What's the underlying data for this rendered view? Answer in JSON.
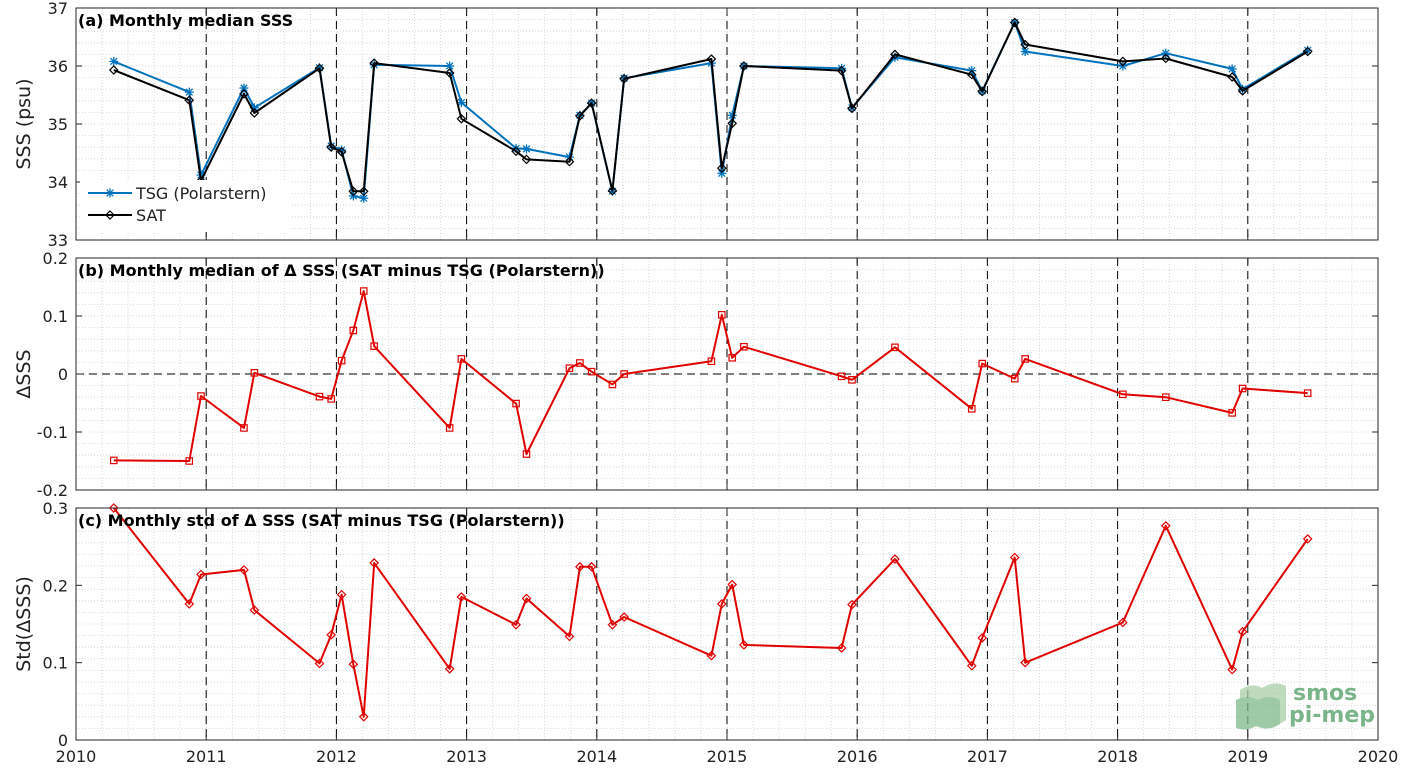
{
  "colors": {
    "tsg": "#0072bd",
    "sat": "#000000",
    "delta": "#e00000",
    "logo": "#4f9e63"
  },
  "logo": {
    "line1": "smos",
    "line2": "pi-mep"
  },
  "chart_data": [
    {
      "type": "line",
      "title": "(a) Monthly median SSS",
      "ylabel": "SSS (psu)",
      "xlim": [
        2010,
        2020
      ],
      "ylim": [
        33,
        37
      ],
      "yticks": [
        "33",
        "34",
        "35",
        "36",
        "37"
      ],
      "grid": true,
      "legend": {
        "position": "bottom-left",
        "entries": [
          "TSG (Polarstern)",
          "SAT"
        ]
      },
      "vertical_dashed_lines": [
        2011,
        2012,
        2013,
        2014,
        2015,
        2016,
        2017,
        2018,
        2019
      ],
      "series": [
        {
          "name": "TSG (Polarstern)",
          "marker": "asterisk",
          "x": [
            2010.29,
            2010.87,
            2010.96,
            2011.29,
            2011.37,
            2011.87,
            2011.96,
            2012.04,
            2012.13,
            2012.21,
            2012.29,
            2012.87,
            2012.96,
            2013.38,
            2013.46,
            2013.79,
            2013.87,
            2013.96,
            2014.12,
            2014.21,
            2014.88,
            2014.96,
            2015.04,
            2015.13,
            2015.88,
            2015.96,
            2016.29,
            2016.88,
            2016.96,
            2017.21,
            2017.29,
            2018.04,
            2018.37,
            2018.88,
            2018.96,
            2019.46
          ],
          "values": [
            36.08,
            35.55,
            34.12,
            35.62,
            35.28,
            35.97,
            34.62,
            34.55,
            33.76,
            33.72,
            36.02,
            36.0,
            35.37,
            34.58,
            34.57,
            34.43,
            35.15,
            35.36,
            33.84,
            35.79,
            36.05,
            34.15,
            35.15,
            36.0,
            35.96,
            35.28,
            36.15,
            35.92,
            35.57,
            36.75,
            36.25,
            36.0,
            36.22,
            35.95,
            35.6,
            36.27
          ]
        },
        {
          "name": "SAT",
          "marker": "diamond",
          "x": [
            2010.29,
            2010.87,
            2010.96,
            2011.29,
            2011.37,
            2011.87,
            2011.96,
            2012.04,
            2012.13,
            2012.21,
            2012.29,
            2012.87,
            2012.96,
            2013.38,
            2013.46,
            2013.79,
            2013.87,
            2013.96,
            2014.12,
            2014.21,
            2014.88,
            2014.96,
            2015.04,
            2015.13,
            2015.88,
            2015.96,
            2016.29,
            2016.88,
            2016.96,
            2017.21,
            2017.29,
            2018.04,
            2018.37,
            2018.88,
            2018.96,
            2019.46
          ],
          "values": [
            35.93,
            35.41,
            34.02,
            35.52,
            35.19,
            35.96,
            34.6,
            34.52,
            33.84,
            33.84,
            36.05,
            35.88,
            35.09,
            34.53,
            34.39,
            34.35,
            35.14,
            35.36,
            33.85,
            35.78,
            36.12,
            34.24,
            35.01,
            36.0,
            35.92,
            35.27,
            36.2,
            35.85,
            35.56,
            36.75,
            36.37,
            36.08,
            36.13,
            35.81,
            35.57,
            36.25
          ]
        }
      ]
    },
    {
      "type": "line",
      "title": "(b) Monthly median of Δ SSS (SAT minus TSG (Polarstern))",
      "ylabel": "ΔSSS",
      "xlim": [
        2010,
        2020
      ],
      "ylim": [
        -0.2,
        0.2
      ],
      "yticks": [
        "-0.2",
        "-0.1",
        "0",
        "0.1",
        "0.2"
      ],
      "grid": true,
      "zero_line": true,
      "vertical_dashed_lines": [
        2011,
        2012,
        2013,
        2014,
        2015,
        2016,
        2017,
        2018,
        2019
      ],
      "series": [
        {
          "marker": "square",
          "x": [
            2010.29,
            2010.87,
            2010.96,
            2011.29,
            2011.37,
            2011.87,
            2011.96,
            2012.04,
            2012.13,
            2012.21,
            2012.29,
            2012.87,
            2012.96,
            2013.38,
            2013.46,
            2013.79,
            2013.87,
            2013.96,
            2014.12,
            2014.21,
            2014.88,
            2014.96,
            2015.04,
            2015.13,
            2015.88,
            2015.96,
            2016.29,
            2016.88,
            2016.96,
            2017.21,
            2017.29,
            2018.04,
            2018.37,
            2018.88,
            2018.96,
            2019.46
          ],
          "values": [
            -0.149,
            -0.15,
            -0.038,
            -0.093,
            0.002,
            -0.039,
            -0.043,
            0.023,
            0.075,
            0.143,
            0.048,
            -0.093,
            0.026,
            -0.051,
            -0.138,
            0.01,
            0.019,
            0.004,
            -0.018,
            0.0,
            0.022,
            0.102,
            0.028,
            0.047,
            -0.004,
            -0.01,
            0.046,
            -0.06,
            0.018,
            -0.008,
            0.026,
            -0.035,
            -0.04,
            -0.067,
            -0.025,
            -0.033
          ]
        }
      ]
    },
    {
      "type": "line",
      "title": "(c) Monthly std of Δ SSS (SAT minus TSG (Polarstern))",
      "ylabel": "Std(ΔSSS)",
      "xlabel": "",
      "xlim": [
        2010,
        2020
      ],
      "ylim": [
        0,
        0.3
      ],
      "yticks": [
        "0",
        "0.1",
        "0.2",
        "0.3"
      ],
      "xticks": [
        "2010",
        "2011",
        "2012",
        "2013",
        "2014",
        "2015",
        "2016",
        "2017",
        "2018",
        "2019",
        "2020"
      ],
      "grid": true,
      "vertical_dashed_lines": [
        2011,
        2012,
        2013,
        2014,
        2015,
        2016,
        2017,
        2018,
        2019
      ],
      "series": [
        {
          "marker": "diamond",
          "x": [
            2010.29,
            2010.87,
            2010.96,
            2011.29,
            2011.37,
            2011.87,
            2011.96,
            2012.04,
            2012.13,
            2012.21,
            2012.29,
            2012.87,
            2012.96,
            2013.38,
            2013.46,
            2013.79,
            2013.87,
            2013.96,
            2014.12,
            2014.21,
            2014.88,
            2014.96,
            2015.04,
            2015.13,
            2015.88,
            2015.96,
            2016.29,
            2016.88,
            2016.96,
            2017.21,
            2017.29,
            2018.04,
            2018.37,
            2018.88,
            2018.96,
            2019.46
          ],
          "values": [
            0.3,
            0.176,
            0.214,
            0.22,
            0.168,
            0.099,
            0.136,
            0.188,
            0.098,
            0.03,
            0.229,
            0.092,
            0.185,
            0.149,
            0.183,
            0.134,
            0.224,
            0.224,
            0.149,
            0.159,
            0.109,
            0.176,
            0.201,
            0.123,
            0.119,
            0.175,
            0.234,
            0.096,
            0.132,
            0.236,
            0.1,
            0.152,
            0.277,
            0.091,
            0.14,
            0.26
          ]
        }
      ]
    }
  ]
}
